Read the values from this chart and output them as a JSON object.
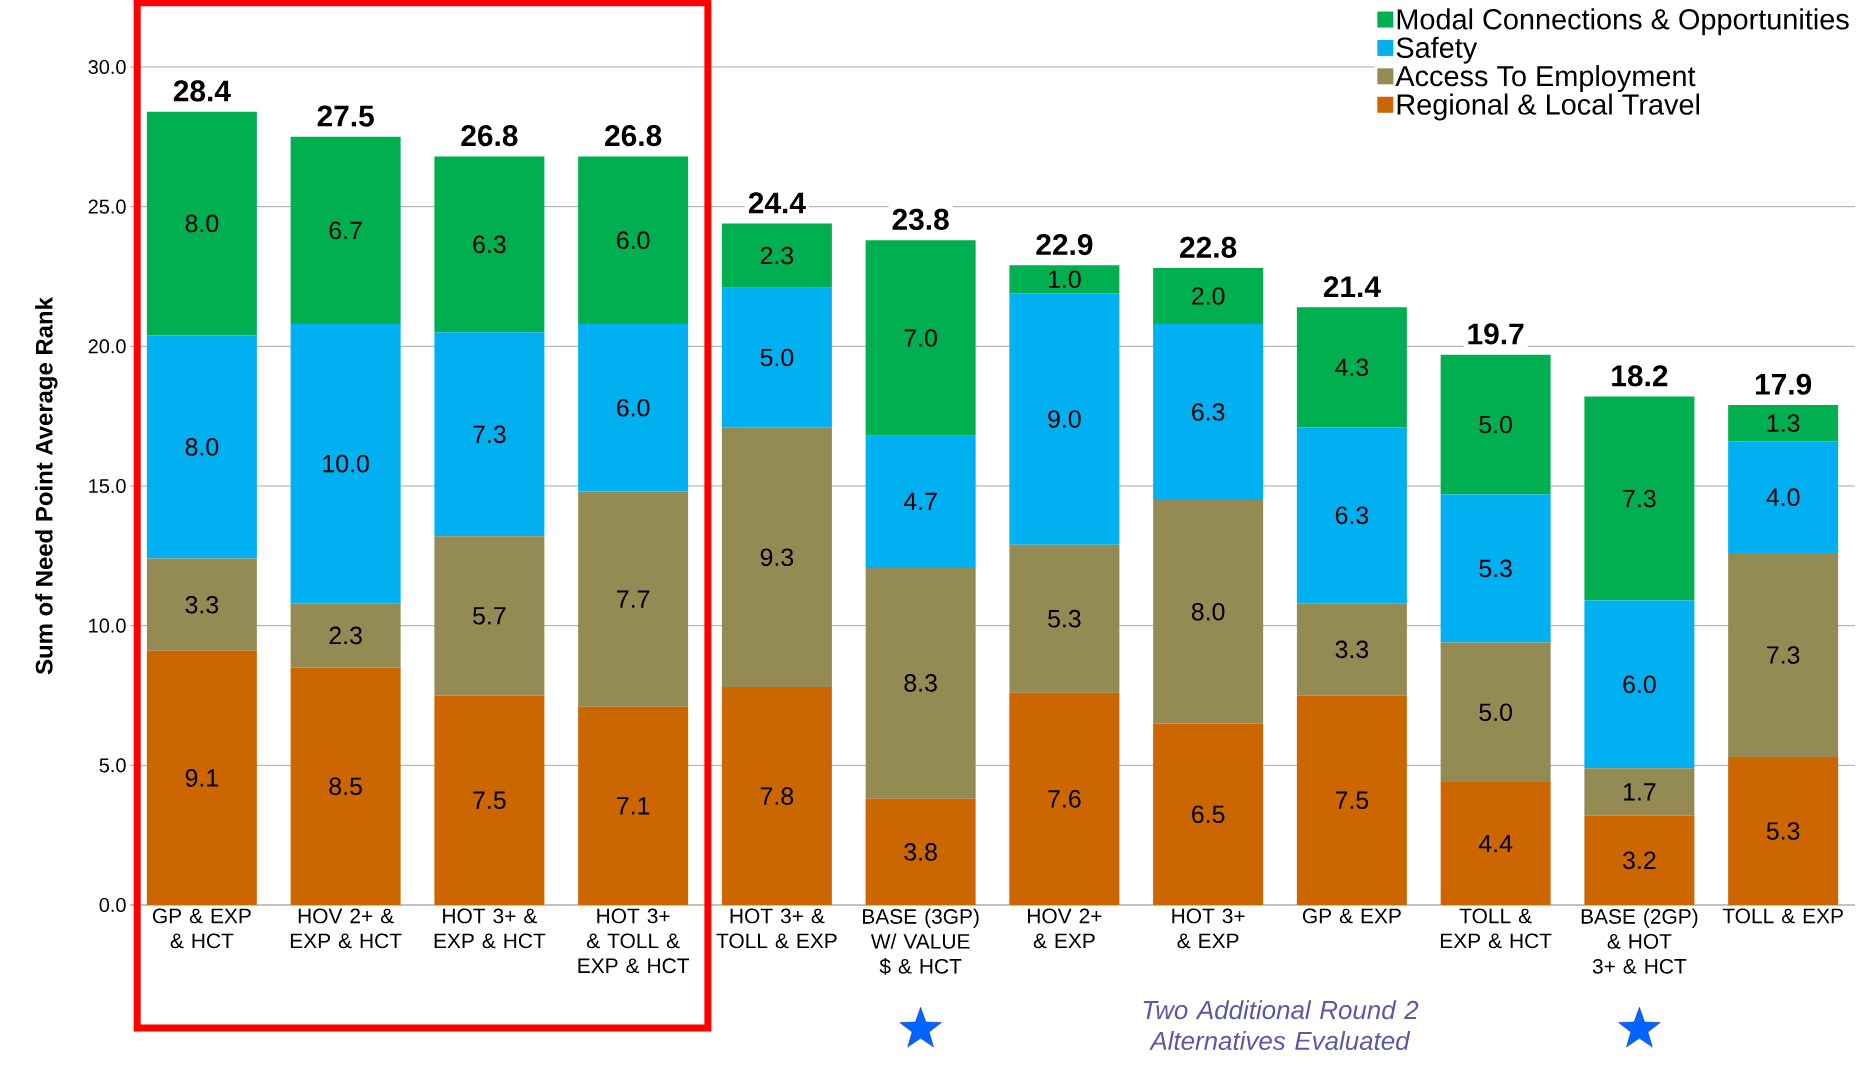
{
  "chart_data": {
    "type": "bar",
    "stacked": true,
    "ylabel": "Sum of Need Point Average Rank",
    "categories": [
      "GP & EXP & HCT",
      "HOV 2+ & EXP & HCT",
      "HOT 3+ & EXP & HCT",
      "HOT 3+ & TOLL & EXP & HCT",
      "HOT 3+ & TOLL & EXP",
      "BASE (3GP) W/ VALUE $ & HCT",
      "HOV 2+ & EXP",
      "HOT 3+ & EXP",
      "GP & EXP",
      "TOLL & EXP & HCT",
      "BASE (2GP) & HOT 3+ & HCT",
      "TOLL & EXP"
    ],
    "series": [
      {
        "name": "Regional & Local Travel",
        "color": "#cc6600",
        "values": [
          9.1,
          8.5,
          7.5,
          7.1,
          7.8,
          3.8,
          7.6,
          6.5,
          7.5,
          4.4,
          3.2,
          5.3
        ],
        "value_labels": [
          "9.1",
          "8.5",
          "7.5",
          "7.1",
          "7.8",
          "3.8",
          "7.6",
          "6.5",
          "7.5",
          "4.4",
          "3.2",
          "5.3"
        ]
      },
      {
        "name": "Access To Employment",
        "color": "#948a54",
        "values": [
          3.3,
          2.3,
          5.7,
          7.7,
          9.3,
          8.3,
          5.3,
          8.0,
          3.3,
          5.0,
          1.7,
          7.3
        ],
        "value_labels": [
          "3.3",
          "2.3",
          "5.7",
          "7.7",
          "9.3",
          "8.3",
          "5.3",
          "8.0",
          "3.3",
          "5.0",
          "1.7",
          "7.3"
        ]
      },
      {
        "name": "Safety",
        "color": "#00b0f0",
        "values": [
          8.0,
          10.0,
          7.3,
          6.0,
          5.0,
          4.7,
          9.0,
          6.3,
          6.3,
          5.3,
          6.0,
          4.0
        ],
        "value_labels": [
          "8.0",
          "10.0",
          "7.3",
          "6.0",
          "5.0",
          "4.7",
          "9.0",
          "6.3",
          "6.3",
          "5.3",
          "6.0",
          "4.0"
        ]
      },
      {
        "name": "Modal Connections & Opportunities",
        "color": "#00b050",
        "values": [
          8.0,
          6.7,
          6.3,
          6.0,
          2.3,
          7.0,
          1.0,
          2.0,
          4.3,
          5.0,
          7.3,
          1.3
        ],
        "value_labels": [
          "8.0",
          "6.7",
          "6.3",
          "6.0",
          "2.3",
          "7.0",
          "1.0",
          "2.0",
          "4.3",
          "5.0",
          "7.3",
          "1.3"
        ]
      }
    ],
    "totals": [
      "28.4",
      "27.5",
      "26.8",
      "26.8",
      "24.4",
      "23.8",
      "22.9",
      "22.8",
      "21.4",
      "19.7",
      "18.2",
      "17.9"
    ],
    "ylim": [
      0,
      30
    ],
    "yticks": [
      {
        "value": 0,
        "label": "0.0"
      },
      {
        "value": 5,
        "label": "5.0"
      },
      {
        "value": 10,
        "label": "10.0"
      },
      {
        "value": 15,
        "label": "15.0"
      },
      {
        "value": 20,
        "label": "20.0"
      },
      {
        "value": 25,
        "label": "25.0"
      },
      {
        "value": 30,
        "label": "30.0"
      }
    ],
    "grid": "y",
    "legend": "top right",
    "annotations": [
      "Two Additional Round 2 Alternatives Evaluated"
    ]
  }
}
